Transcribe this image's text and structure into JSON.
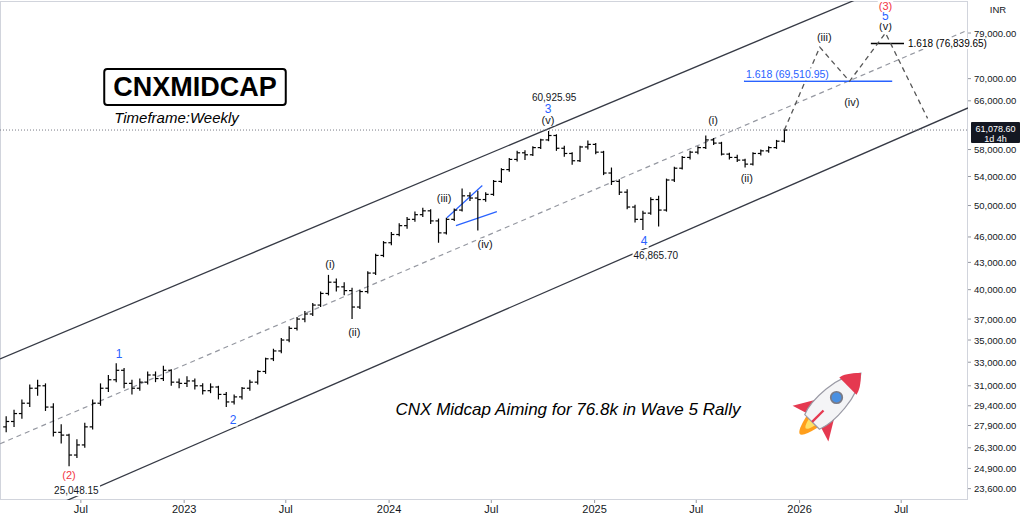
{
  "chart_data": {
    "type": "ohlc",
    "title": "CNXMIDCAP",
    "subtitle": "Timeframe:Weekly",
    "caption": "CNX Midcap Aiming for 76.8k in Wave 5 Rally",
    "currency": "INR",
    "color": "#000000",
    "log": "y",
    "grid": false,
    "tick_labels": true,
    "xlim": [
      "2022-02-07",
      "2026-10-28"
    ],
    "ylim": [
      22900,
      86000
    ],
    "xticks": [
      {
        "value": "2022-07-01",
        "label": "Jul"
      },
      {
        "value": "2023-01-01",
        "label": "2023"
      },
      {
        "value": "2023-07-01",
        "label": "Jul"
      },
      {
        "value": "2024-01-01",
        "label": "2024"
      },
      {
        "value": "2024-07-01",
        "label": "Jul"
      },
      {
        "value": "2025-01-01",
        "label": "2025"
      },
      {
        "value": "2025-07-01",
        "label": "Jul"
      },
      {
        "value": "2026-01-01",
        "label": "2026"
      },
      {
        "value": "2026-07-01",
        "label": "Jul"
      }
    ],
    "yticks": [
      {
        "value": 23600,
        "label": "23,600.00"
      },
      {
        "value": 24900,
        "label": "24,900.00"
      },
      {
        "value": 26300,
        "label": "26,300.00"
      },
      {
        "value": 27900,
        "label": "27,900.00"
      },
      {
        "value": 29400,
        "label": "29,400.00"
      },
      {
        "value": 31000,
        "label": "31,000.00"
      },
      {
        "value": 33000,
        "label": "33,000.00"
      },
      {
        "value": 35000,
        "label": "35,000.00"
      },
      {
        "value": 37000,
        "label": "37,000.00"
      },
      {
        "value": 40000,
        "label": "40,000.00"
      },
      {
        "value": 43000,
        "label": "43,000.00"
      },
      {
        "value": 46000,
        "label": "46,000.00"
      },
      {
        "value": 50000,
        "label": "50,000.00"
      },
      {
        "value": 54000,
        "label": "54,000.00"
      },
      {
        "value": 58000,
        "label": "58,000.00"
      },
      {
        "value": 66000,
        "label": "66,000.00"
      },
      {
        "value": 70000,
        "label": "70,000.00"
      },
      {
        "value": 79000,
        "label": "79,000.00"
      }
    ],
    "x": [
      "2022-02-18",
      "2022-03-04",
      "2022-03-18",
      "2022-04-01",
      "2022-04-15",
      "2022-04-29",
      "2022-05-13",
      "2022-05-27",
      "2022-06-10",
      "2022-06-24",
      "2022-07-08",
      "2022-07-22",
      "2022-08-05",
      "2022-08-19",
      "2022-09-02",
      "2022-09-16",
      "2022-09-30",
      "2022-10-14",
      "2022-10-28",
      "2022-11-11",
      "2022-11-25",
      "2022-12-09",
      "2022-12-23",
      "2023-01-06",
      "2023-01-20",
      "2023-02-03",
      "2023-02-17",
      "2023-03-03",
      "2023-03-17",
      "2023-03-31",
      "2023-04-14",
      "2023-04-28",
      "2023-05-12",
      "2023-05-26",
      "2023-06-09",
      "2023-06-23",
      "2023-07-07",
      "2023-07-21",
      "2023-08-04",
      "2023-08-18",
      "2023-09-01",
      "2023-09-15",
      "2023-09-29",
      "2023-10-13",
      "2023-10-27",
      "2023-11-10",
      "2023-11-24",
      "2023-12-08",
      "2023-12-22",
      "2024-01-05",
      "2024-01-19",
      "2024-02-02",
      "2024-02-16",
      "2024-03-01",
      "2024-03-15",
      "2024-03-29",
      "2024-04-12",
      "2024-04-26",
      "2024-05-10",
      "2024-05-24",
      "2024-06-07",
      "2024-06-21",
      "2024-07-05",
      "2024-07-19",
      "2024-08-02",
      "2024-08-16",
      "2024-08-30",
      "2024-09-13",
      "2024-09-27",
      "2024-10-11",
      "2024-10-25",
      "2024-11-08",
      "2024-11-22",
      "2024-12-06",
      "2024-12-20",
      "2025-01-03",
      "2025-01-17",
      "2025-01-31",
      "2025-02-14",
      "2025-02-28",
      "2025-03-14",
      "2025-03-28",
      "2025-04-11",
      "2025-04-25",
      "2025-05-09",
      "2025-05-23",
      "2025-06-06",
      "2025-06-20",
      "2025-07-04",
      "2025-07-18",
      "2025-08-01",
      "2025-08-15",
      "2025-08-29",
      "2025-09-12",
      "2025-09-26",
      "2025-10-10",
      "2025-10-24",
      "2025-11-07",
      "2025-11-21",
      "2025-12-05"
    ],
    "open": [
      27800,
      28200,
      28800,
      29600,
      30800,
      31000,
      29300,
      27400,
      27200,
      25800,
      26500,
      27800,
      29600,
      30800,
      31500,
      32300,
      31200,
      30800,
      31300,
      31900,
      31600,
      32300,
      31300,
      31200,
      31400,
      31000,
      30600,
      30900,
      30300,
      29700,
      30100,
      30800,
      31300,
      32200,
      33300,
      34000,
      35000,
      36100,
      37000,
      37500,
      38400,
      39600,
      40800,
      40300,
      39900,
      38200,
      39800,
      41800,
      43800,
      45300,
      46300,
      47400,
      48200,
      48800,
      49300,
      48000,
      46500,
      48200,
      49400,
      51300,
      51000,
      50800,
      51500,
      53300,
      55000,
      56500,
      57500,
      57200,
      58300,
      59500,
      60200,
      58200,
      57400,
      56300,
      58400,
      58800,
      57600,
      54500,
      53300,
      51800,
      49800,
      48200,
      49000,
      50800,
      49400,
      53500,
      55200,
      56800,
      57600,
      58300,
      59500,
      59000,
      57300,
      56800,
      56400,
      55800,
      57400,
      57800,
      58300,
      59300
    ],
    "high": [
      28600,
      29100,
      29900,
      31100,
      31500,
      31200,
      29600,
      28000,
      27300,
      26900,
      28100,
      29900,
      31200,
      31900,
      32900,
      32500,
      31500,
      31600,
      32200,
      32200,
      32700,
      32400,
      31600,
      31800,
      31600,
      31200,
      31200,
      31000,
      30500,
      30300,
      30900,
      31500,
      32300,
      33400,
      34200,
      35200,
      36300,
      37200,
      37800,
      38600,
      39800,
      41600,
      41200,
      40800,
      40200,
      40000,
      42000,
      44000,
      45500,
      46600,
      47700,
      48500,
      49200,
      49700,
      49500,
      48300,
      48400,
      49600,
      52300,
      51800,
      52000,
      51800,
      53500,
      55200,
      56700,
      57800,
      57900,
      58500,
      59700,
      60925.95,
      60400,
      58600,
      57600,
      58600,
      59400,
      59000,
      57800,
      55300,
      53600,
      52200,
      50100,
      49300,
      51100,
      51300,
      53700,
      55400,
      57000,
      57800,
      58500,
      60200,
      59800,
      59200,
      57500,
      57200,
      56600,
      57600,
      58000,
      58500,
      59500,
      61300
    ],
    "low": [
      27400,
      27800,
      28400,
      29300,
      30200,
      29000,
      27100,
      26600,
      25048.15,
      25600,
      26300,
      27600,
      29400,
      30500,
      31300,
      30800,
      30300,
      30600,
      31100,
      31300,
      31400,
      31000,
      30800,
      30900,
      30700,
      30300,
      30400,
      29900,
      29300,
      29500,
      29900,
      30600,
      31100,
      32000,
      33100,
      33800,
      34800,
      35900,
      36700,
      37300,
      38200,
      39400,
      39800,
      39400,
      37000,
      38000,
      39600,
      41600,
      43600,
      45000,
      46100,
      47000,
      47900,
      48500,
      47600,
      45300,
      46300,
      48000,
      49200,
      50600,
      46800,
      50500,
      51300,
      53100,
      54700,
      56200,
      56400,
      57000,
      58100,
      59300,
      57800,
      56900,
      55700,
      56100,
      58000,
      57300,
      54200,
      52800,
      51400,
      49500,
      47800,
      46865.7,
      48800,
      47300,
      49200,
      53200,
      55000,
      56500,
      57300,
      58100,
      58700,
      57100,
      56500,
      56100,
      55300,
      55600,
      57100,
      57500,
      58100,
      59100
    ],
    "close": [
      28200,
      28800,
      29600,
      30800,
      31000,
      29300,
      27400,
      27200,
      25800,
      26500,
      27800,
      29600,
      30800,
      31500,
      32300,
      31200,
      30800,
      31300,
      31900,
      31600,
      32300,
      31300,
      31200,
      31400,
      31000,
      30600,
      30900,
      30300,
      29700,
      30100,
      30800,
      31300,
      32200,
      33300,
      34000,
      35000,
      36100,
      37000,
      37500,
      38400,
      39600,
      40800,
      40300,
      39900,
      38200,
      39800,
      41800,
      43800,
      45300,
      46300,
      47400,
      48200,
      48800,
      49300,
      48000,
      46500,
      48200,
      49400,
      51300,
      51000,
      50800,
      51500,
      53300,
      55000,
      56500,
      57500,
      57200,
      58300,
      59500,
      60200,
      58200,
      57400,
      56300,
      58400,
      58800,
      57600,
      54500,
      53300,
      51800,
      49800,
      48200,
      49000,
      50800,
      49400,
      53500,
      55200,
      56800,
      57600,
      58300,
      59500,
      59000,
      57300,
      56800,
      56400,
      55800,
      57400,
      57800,
      58300,
      59300,
      61078.6
    ],
    "last_price": {
      "value": 61078.6,
      "label": "61,078.60",
      "countdown": "1d 4h"
    },
    "lines": [
      {
        "x": [
          "2022-02-07",
          "2026-10-28"
        ],
        "values": [
          33290,
          97780
        ],
        "color": "#363a45",
        "line_style": "solid"
      },
      {
        "x": [
          "2022-02-07",
          "2026-10-28"
        ],
        "values": [
          21170,
          64760
        ],
        "color": "#363a45",
        "line_style": "solid"
      },
      {
        "x": [
          "2022-02-07",
          "2026-10-28"
        ],
        "values": [
          26580,
          79630
        ],
        "color": "#9598a1",
        "line_style": "dashed"
      },
      {
        "x": [
          "2024-04-13",
          "2024-06-15"
        ],
        "values": [
          48400,
          52730
        ],
        "color": "#2962ff",
        "line_style": "solid"
      },
      {
        "x": [
          "2024-04-29",
          "2024-07-11"
        ],
        "values": [
          47400,
          49200
        ],
        "color": "#2962ff",
        "line_style": "solid"
      }
    ],
    "projection": {
      "x": [
        "2025-12-05",
        "2026-02-06",
        "2026-03-31",
        "2026-06-03",
        "2026-08-17"
      ],
      "values": [
        61078.6,
        76100,
        69500,
        79000,
        63000
      ],
      "color": "#555555",
      "line_style": "dashed"
    },
    "levels": [
      {
        "x": [
          "2025-09-24",
          "2026-06-15"
        ],
        "value": 69510.95,
        "label": "1.618 (69,510.95)",
        "color": "#2962ff"
      },
      {
        "x": [
          "2026-05-08",
          "2026-07-06"
        ],
        "value": 76839.65,
        "label": "1.618 (76,839.65)",
        "color": "#000000"
      }
    ],
    "annotations": [
      {
        "text": "(2)",
        "x": "2022-06-10",
        "value": 24440,
        "color": "#f23645"
      },
      {
        "text": "25,048.15",
        "x": "2022-06-23",
        "value": 23480,
        "color": "#131722"
      },
      {
        "text": "1",
        "x": "2022-09-07",
        "value": 33700,
        "color": "#2962ff"
      },
      {
        "text": "2",
        "x": "2023-03-29",
        "value": 28340,
        "color": "#2962ff"
      },
      {
        "text": "(i)",
        "x": "2023-09-18",
        "value": 42800,
        "color": "#131722"
      },
      {
        "text": "(ii)",
        "x": "2023-10-31",
        "value": 35800,
        "color": "#131722"
      },
      {
        "text": "(iii)",
        "x": "2024-04-08",
        "value": 51000,
        "color": "#131722"
      },
      {
        "text": "(iv)",
        "x": "2024-06-20",
        "value": 45100,
        "color": "#131722"
      },
      {
        "text": "(v)",
        "x": "2024-10-10",
        "value": 62800,
        "color": "#131722"
      },
      {
        "text": "3",
        "x": "2024-10-10",
        "value": 64580,
        "color": "#2962ff"
      },
      {
        "text": "60,925.95",
        "x": "2024-10-21",
        "value": 66670,
        "color": "#131722"
      },
      {
        "text": "4",
        "x": "2025-03-30",
        "value": 45500,
        "color": "#2962ff"
      },
      {
        "text": "46,865.70",
        "x": "2025-04-20",
        "value": 43800,
        "color": "#131722"
      },
      {
        "text": "(i)",
        "x": "2025-07-31",
        "value": 62800,
        "color": "#131722"
      },
      {
        "text": "(ii)",
        "x": "2025-09-29",
        "value": 53800,
        "color": "#131722"
      },
      {
        "text": "(iii)",
        "x": "2026-02-14",
        "value": 78170,
        "color": "#131722"
      },
      {
        "text": "(iv)",
        "x": "2026-04-04",
        "value": 65800,
        "color": "#131722"
      },
      {
        "text": "(v)",
        "x": "2026-06-03",
        "value": 80470,
        "color": "#131722"
      },
      {
        "text": "5",
        "x": "2026-06-03",
        "value": 82620,
        "color": "#2962ff"
      },
      {
        "text": "(3)",
        "x": "2026-06-03",
        "value": 84860,
        "color": "#f23645"
      }
    ]
  }
}
